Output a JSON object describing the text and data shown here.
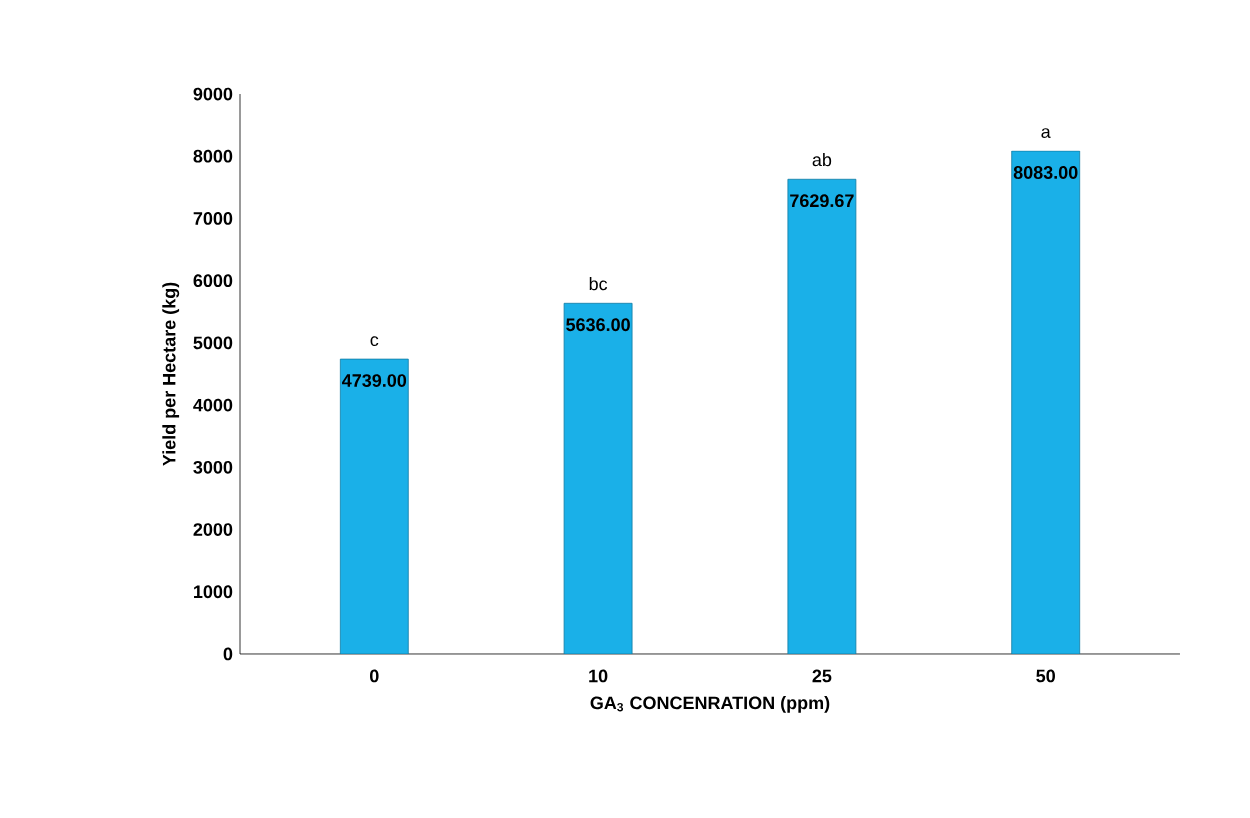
{
  "chart_data": {
    "type": "bar",
    "xlabel": "GA$_{3}$ CONCENRATION (ppm)",
    "ylabel": "Yield per Hectare (kg)",
    "categories": [
      "0",
      "10",
      "25",
      "50"
    ],
    "values": [
      4739,
      5636,
      7629.67,
      8083
    ],
    "value_labels": [
      "4739.00",
      "5636.00",
      "7629.67",
      "8083.00"
    ],
    "color": "#1ab0e8",
    "ylim": [
      0,
      9000
    ],
    "yticks": [
      0,
      1000,
      2000,
      3000,
      4000,
      5000,
      6000,
      7000,
      8000,
      9000
    ],
    "annotations": [
      {
        "text": "c",
        "x": "0",
        "y": 4739
      },
      {
        "text": "bc",
        "x": "10",
        "y": 5636
      },
      {
        "text": "ab",
        "x": "25",
        "y": 7629.67
      },
      {
        "text": "a",
        "x": "50",
        "y": 8083
      }
    ]
  }
}
